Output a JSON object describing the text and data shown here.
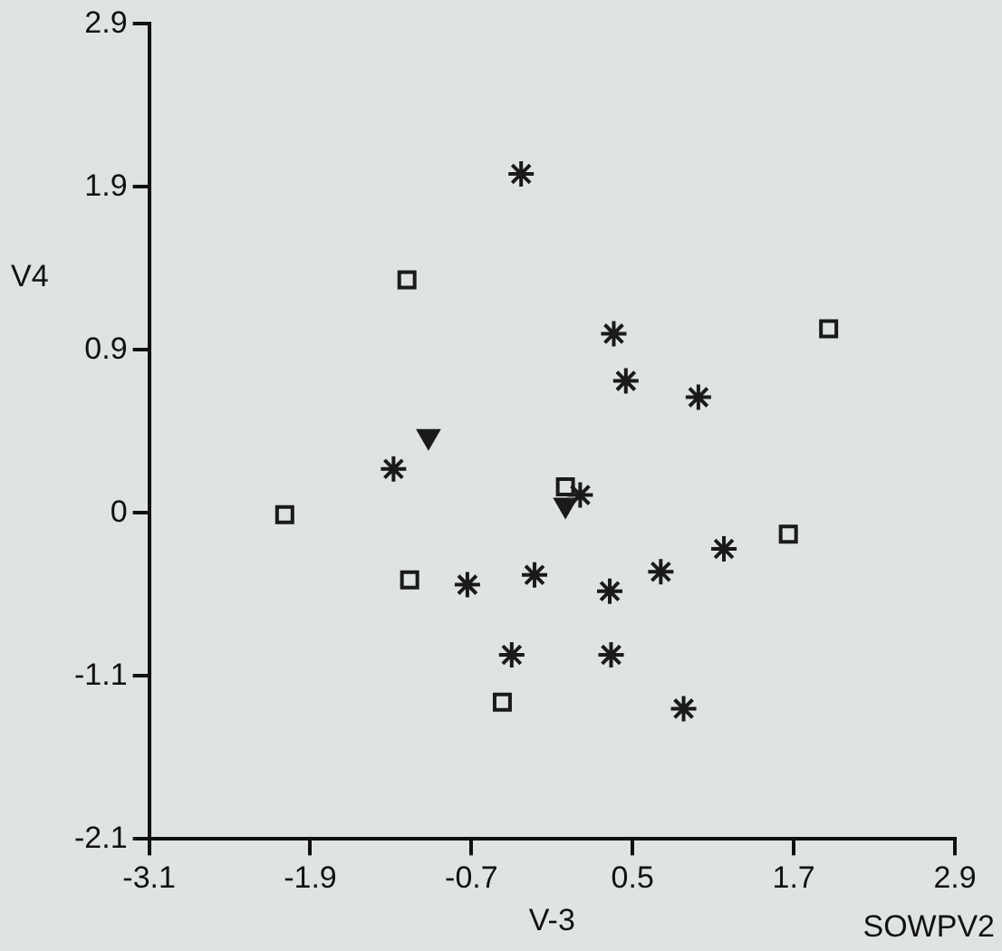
{
  "chart_data": {
    "type": "scatter",
    "xlabel": "V-3",
    "ylabel": "V4",
    "annotations": [
      "SOWPV2"
    ],
    "xlim": [
      -3.1,
      2.9
    ],
    "xticks": [
      -3.1,
      -1.9,
      -0.7,
      0.5,
      1.7,
      2.9
    ],
    "ylim": [
      -2.1,
      2.9
    ],
    "yticks": [
      -2.1,
      -1.1,
      {
        "value": -0.1,
        "label": "0"
      },
      0.9,
      1.9,
      2.9
    ],
    "grid": false,
    "legend": false,
    "series": [
      {
        "color": "#1a1a1a",
        "marker": "cross",
        "x": [
          -0.33,
          0.36,
          0.45,
          0.99,
          -1.28,
          0.11,
          -0.73,
          -0.23,
          0.33,
          0.71,
          1.18,
          -0.4,
          0.34,
          0.88
        ],
        "values": [
          1.98,
          1.0,
          0.71,
          0.61,
          0.17,
          0.01,
          -0.54,
          -0.48,
          -0.58,
          -0.46,
          -0.32,
          -0.97,
          -0.97,
          -1.3
        ]
      },
      {
        "color": "#1a1a1a",
        "marker": "square",
        "x": [
          -1.18,
          1.96,
          0.0,
          -1.16,
          1.66,
          -0.47,
          -2.09
        ],
        "values": [
          1.33,
          1.03,
          0.06,
          -0.51,
          -0.23,
          -1.26,
          -0.11
        ]
      },
      {
        "color": "#1a1a1a",
        "marker": "triangle",
        "x": [
          -1.02,
          0.0
        ],
        "values": [
          0.37,
          -0.05
        ]
      }
    ]
  }
}
